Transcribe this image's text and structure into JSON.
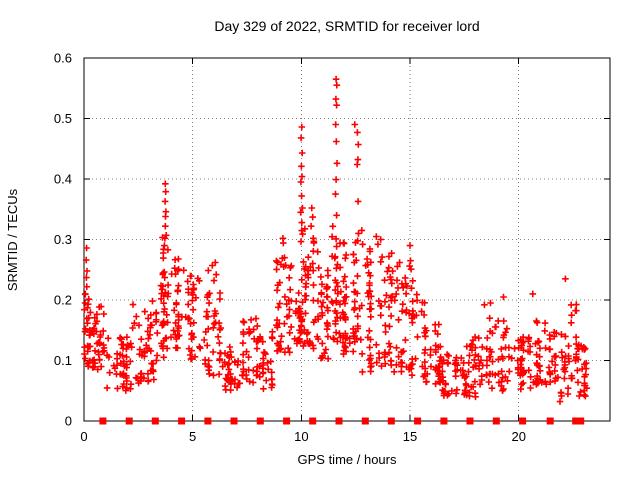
{
  "colors": {
    "marker": "#ff0000",
    "grid": "#7f7f7f",
    "axis": "#000000",
    "background": "#ffffff",
    "text": "#000000"
  },
  "chart_data": {
    "type": "scatter",
    "title": "Day 329 of 2022, SRMTID for receiver lord",
    "xlabel": "GPS time / hours",
    "ylabel": "SRMTID / TECUs",
    "xlim": [
      0,
      24.2
    ],
    "ylim": [
      0,
      0.6
    ],
    "xticks": [
      0,
      5,
      10,
      15,
      20
    ],
    "xtick_labels": [
      "0",
      "5",
      "10",
      "15",
      "20"
    ],
    "yticks": [
      0,
      0.1,
      0.2,
      0.3,
      0.4,
      0.5,
      0.6
    ],
    "ytick_labels": [
      "0",
      "0.1",
      "0.2",
      "0.3",
      "0.4",
      "0.5",
      "0.6"
    ],
    "grid": true,
    "legend": "none",
    "marker": "plus",
    "marker_color": "#ff0000",
    "max_point": [
      11.6,
      0.565
    ],
    "series": [
      {
        "name": "SRMTID",
        "marker": "plus",
        "color": "#ff0000",
        "peak_points": [
          [
            0.12,
            0.286
          ],
          [
            0.1,
            0.266
          ],
          [
            0.14,
            0.248
          ],
          [
            0.11,
            0.237
          ],
          [
            0.13,
            0.222
          ],
          [
            0.06,
            0.21
          ],
          [
            0.05,
            0.195
          ],
          [
            3.74,
            0.392
          ],
          [
            3.76,
            0.379
          ],
          [
            3.73,
            0.363
          ],
          [
            3.77,
            0.346
          ],
          [
            3.75,
            0.338
          ],
          [
            3.74,
            0.322
          ],
          [
            3.78,
            0.307
          ],
          [
            3.72,
            0.302
          ],
          [
            6.04,
            0.262
          ],
          [
            6.08,
            0.242
          ],
          [
            5.98,
            0.232
          ],
          [
            9.15,
            0.302
          ],
          [
            9.17,
            0.294
          ],
          [
            9.13,
            0.269
          ],
          [
            9.19,
            0.255
          ],
          [
            10.02,
            0.486
          ],
          [
            9.99,
            0.468
          ],
          [
            10.04,
            0.443
          ],
          [
            10.0,
            0.421
          ],
          [
            10.03,
            0.404
          ],
          [
            9.98,
            0.395
          ],
          [
            10.01,
            0.372
          ],
          [
            10.05,
            0.352
          ],
          [
            9.97,
            0.345
          ],
          [
            10.02,
            0.328
          ],
          [
            10.48,
            0.352
          ],
          [
            10.52,
            0.337
          ],
          [
            10.45,
            0.322
          ],
          [
            10.55,
            0.302
          ],
          [
            11.6,
            0.565
          ],
          [
            11.63,
            0.555
          ],
          [
            11.59,
            0.532
          ],
          [
            11.62,
            0.522
          ],
          [
            11.58,
            0.49
          ],
          [
            11.61,
            0.462
          ],
          [
            11.64,
            0.426
          ],
          [
            11.6,
            0.399
          ],
          [
            11.57,
            0.375
          ],
          [
            11.62,
            0.34
          ],
          [
            12.46,
            0.49
          ],
          [
            12.58,
            0.477
          ],
          [
            12.62,
            0.457
          ],
          [
            12.6,
            0.432
          ],
          [
            12.57,
            0.424
          ],
          [
            12.61,
            0.363
          ],
          [
            12.63,
            0.31
          ],
          [
            12.78,
            0.315
          ],
          [
            12.82,
            0.292
          ],
          [
            13.45,
            0.305
          ],
          [
            13.52,
            0.292
          ],
          [
            13.65,
            0.3
          ],
          [
            14.52,
            0.262
          ],
          [
            15.0,
            0.29
          ],
          [
            15.02,
            0.265
          ],
          [
            14.98,
            0.256
          ],
          [
            18.42,
            0.192
          ],
          [
            18.7,
            0.195
          ],
          [
            19.3,
            0.205
          ],
          [
            20.65,
            0.21
          ],
          [
            21.9,
            0.032
          ],
          [
            22.15,
            0.235
          ]
        ],
        "density_bands": [
          [
            0.02,
            0.3,
            0.09,
            0.21,
            26,
            1.0
          ],
          [
            0.3,
            1.0,
            0.07,
            0.19,
            34,
            1.2
          ],
          [
            1.0,
            2.2,
            0.05,
            0.14,
            48,
            1.1
          ],
          [
            2.2,
            3.3,
            0.06,
            0.2,
            46,
            1.3
          ],
          [
            3.3,
            3.7,
            0.1,
            0.25,
            22,
            1.2
          ],
          [
            3.6,
            3.95,
            0.12,
            0.31,
            26,
            1.4
          ],
          [
            3.95,
            4.6,
            0.12,
            0.27,
            30,
            1.3
          ],
          [
            4.6,
            5.4,
            0.1,
            0.24,
            34,
            1.3
          ],
          [
            5.4,
            6.3,
            0.07,
            0.26,
            40,
            1.4
          ],
          [
            6.3,
            7.1,
            0.05,
            0.13,
            34,
            1.1
          ],
          [
            7.1,
            8.1,
            0.06,
            0.17,
            40,
            1.2
          ],
          [
            8.1,
            8.7,
            0.05,
            0.15,
            24,
            1.1
          ],
          [
            8.7,
            9.6,
            0.11,
            0.27,
            40,
            1.3
          ],
          [
            9.6,
            9.95,
            0.12,
            0.25,
            18,
            1.2
          ],
          [
            9.95,
            10.3,
            0.12,
            0.33,
            30,
            1.3
          ],
          [
            10.3,
            10.8,
            0.12,
            0.3,
            28,
            1.4
          ],
          [
            10.8,
            11.4,
            0.1,
            0.26,
            30,
            1.3
          ],
          [
            11.4,
            11.8,
            0.13,
            0.33,
            32,
            1.2
          ],
          [
            11.8,
            12.4,
            0.1,
            0.3,
            34,
            1.3
          ],
          [
            12.4,
            12.75,
            0.13,
            0.3,
            24,
            1.2
          ],
          [
            12.75,
            13.4,
            0.08,
            0.29,
            34,
            1.4
          ],
          [
            13.4,
            14.2,
            0.09,
            0.28,
            42,
            1.3
          ],
          [
            14.2,
            15.05,
            0.08,
            0.26,
            36,
            1.4
          ],
          [
            15.05,
            15.7,
            0.07,
            0.24,
            30,
            1.4
          ],
          [
            15.7,
            16.5,
            0.06,
            0.16,
            36,
            1.2
          ],
          [
            16.5,
            17.6,
            0.04,
            0.11,
            42,
            1.1
          ],
          [
            17.6,
            18.6,
            0.04,
            0.14,
            40,
            1.3
          ],
          [
            18.6,
            19.6,
            0.05,
            0.18,
            40,
            1.3
          ],
          [
            19.6,
            20.6,
            0.05,
            0.14,
            40,
            1.2
          ],
          [
            20.6,
            21.6,
            0.06,
            0.17,
            40,
            1.3
          ],
          [
            21.6,
            22.35,
            0.04,
            0.15,
            32,
            1.2
          ],
          [
            22.35,
            22.65,
            0.07,
            0.2,
            16,
            1.2
          ],
          [
            22.65,
            23.2,
            0.04,
            0.13,
            26,
            1.3
          ]
        ]
      },
      {
        "name": "interval markers",
        "marker": "filled-square",
        "color": "#ff0000",
        "y": 0,
        "x": [
          0.87,
          2.08,
          3.28,
          4.49,
          5.7,
          6.9,
          8.11,
          9.32,
          10.52,
          11.73,
          12.94,
          14.14,
          15.35,
          16.56,
          17.76,
          18.97,
          20.18,
          21.45,
          22.62,
          22.78,
          22.85
        ]
      }
    ]
  }
}
